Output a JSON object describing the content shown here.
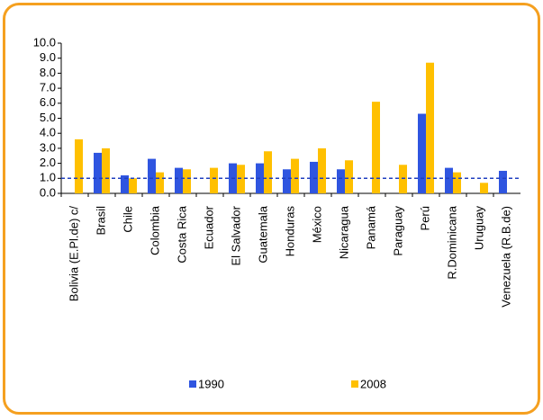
{
  "chart_data": {
    "type": "bar",
    "categories": [
      "Bolivia (E.Pl.de) c/",
      "Brasil",
      "Chile",
      "Colombia",
      "Costa Rica",
      "Ecuador",
      "El Salvador",
      "Guatemala",
      "Honduras",
      "México",
      "Nicaragua",
      "Panamá",
      "Paraguay",
      "Perú",
      "R.Dominicana",
      "Uruguay",
      "Venezuela  (R.B.de)"
    ],
    "series": [
      {
        "name": "1990",
        "color": "#2f55e0",
        "values": [
          null,
          2.7,
          1.2,
          2.3,
          1.7,
          null,
          2.0,
          2.0,
          1.6,
          2.1,
          1.6,
          null,
          null,
          5.3,
          1.7,
          null,
          1.5
        ]
      },
      {
        "name": "2008",
        "color": "#ffc000",
        "values": [
          3.6,
          3.0,
          1.0,
          1.4,
          1.6,
          1.7,
          1.9,
          2.8,
          2.3,
          3.0,
          2.2,
          6.1,
          1.9,
          8.7,
          1.4,
          0.7,
          null
        ]
      }
    ],
    "reference_line": {
      "value": 1,
      "color": "#1f3fbf"
    },
    "ylim": [
      0,
      10
    ],
    "yticks": [
      {
        "value": 0,
        "label": "0.0"
      },
      {
        "value": 1,
        "label": "1.0"
      },
      {
        "value": 2,
        "label": "2.0"
      },
      {
        "value": 3,
        "label": "3.0"
      },
      {
        "value": 4,
        "label": "4.0"
      },
      {
        "value": 5,
        "label": "5.0"
      },
      {
        "value": 6,
        "label": "6.0"
      },
      {
        "value": 7,
        "label": "7.0"
      },
      {
        "value": 8,
        "label": "8.0"
      },
      {
        "value": 9,
        "label": "9.0"
      },
      {
        "value": 10,
        "label": "10.0"
      }
    ],
    "grid": false
  }
}
